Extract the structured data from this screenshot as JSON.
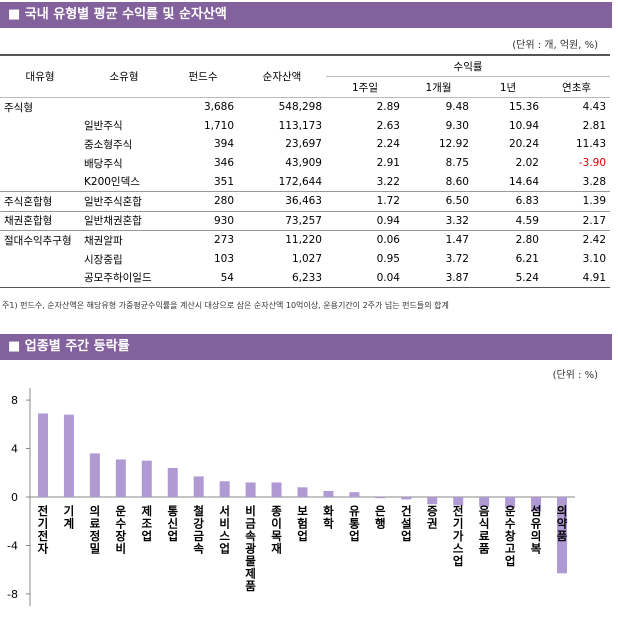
{
  "header": {
    "title": "■ 국내 유형별 평균 수익률 및 순자산액",
    "unit": "(단위 : 개, 억원, %)"
  },
  "table": {
    "columns": [
      "대유형",
      "소유형",
      "펀드수",
      "순자산액",
      "수익률"
    ],
    "subcolumns": [
      "1주일",
      "1개월",
      "1년",
      "연초후"
    ],
    "rows": [
      [
        "주식형",
        null,
        "3,686",
        "548,298",
        "2.89",
        "9.48",
        "15.36",
        "4.43"
      ],
      [
        null,
        "일반주식",
        "1,710",
        "113,173",
        "2.63",
        "9.30",
        "10.94",
        "2.81"
      ],
      [
        null,
        "중소형주식",
        "394",
        "23,697",
        "2.24",
        "12.92",
        "20.24",
        "11.43"
      ],
      [
        null,
        "배당주식",
        "346",
        "43,909",
        "2.91",
        "8.75",
        "2.02",
        "-3.90"
      ],
      [
        null,
        "K200인덱스",
        "351",
        "172,644",
        "3.22",
        "8.60",
        "14.64",
        "3.28"
      ],
      [
        "주식혼합형",
        "일반주식혼합",
        "280",
        "36,463",
        "1.72",
        "6.50",
        "6.83",
        "1.39"
      ],
      [
        "채권혼합형",
        "일반채권혼합",
        "930",
        "73,257",
        "0.94",
        "3.32",
        "4.59",
        "2.17"
      ],
      [
        "절대수익추구형",
        "채권알파",
        "273",
        "11,220",
        "0.06",
        "1.47",
        "2.80",
        "2.42"
      ],
      [
        null,
        "시장중립",
        "103",
        "1,027",
        "0.95",
        "3.72",
        "6.21",
        "3.10"
      ],
      [
        null,
        "공모주하이일드",
        "54",
        "6,233",
        "0.04",
        "3.87",
        "5.24",
        "4.91"
      ]
    ],
    "group_ends": [
      4,
      5,
      6
    ],
    "note": "주1) 펀드수, 순자산액은 해당유형 가중평균수익률을 계산시 대상으로 삼은 순자산액 10억이상, 운용기간이 2주가 넘는 펀드들의 합계"
  },
  "section2": {
    "title": "■ 업종별 주간 등락률",
    "unit": "(단위 : %)"
  },
  "chart_data": {
    "type": "bar",
    "color": "#b09ad3",
    "categories": [
      "전기전자",
      "기계",
      "의료정밀",
      "운수장비",
      "제조업",
      "통신업",
      "철강금속",
      "서비스업",
      "비금속광물제품",
      "종이목재",
      "보험업",
      "화학",
      "유통업",
      "은행",
      "건설업",
      "증권",
      "전기가스업",
      "음식료품",
      "운수창고업",
      "섬유의복",
      "의약품"
    ],
    "values": [
      6.9,
      6.8,
      3.6,
      3.1,
      3.0,
      2.4,
      1.7,
      1.3,
      1.2,
      1.2,
      0.8,
      0.5,
      0.4,
      -0.1,
      -0.2,
      -0.6,
      -0.7,
      -0.8,
      -0.9,
      -1.2,
      -6.3
    ],
    "ylim": [
      -9,
      9
    ],
    "yticks": [
      -8,
      -4,
      0,
      4,
      8
    ]
  }
}
